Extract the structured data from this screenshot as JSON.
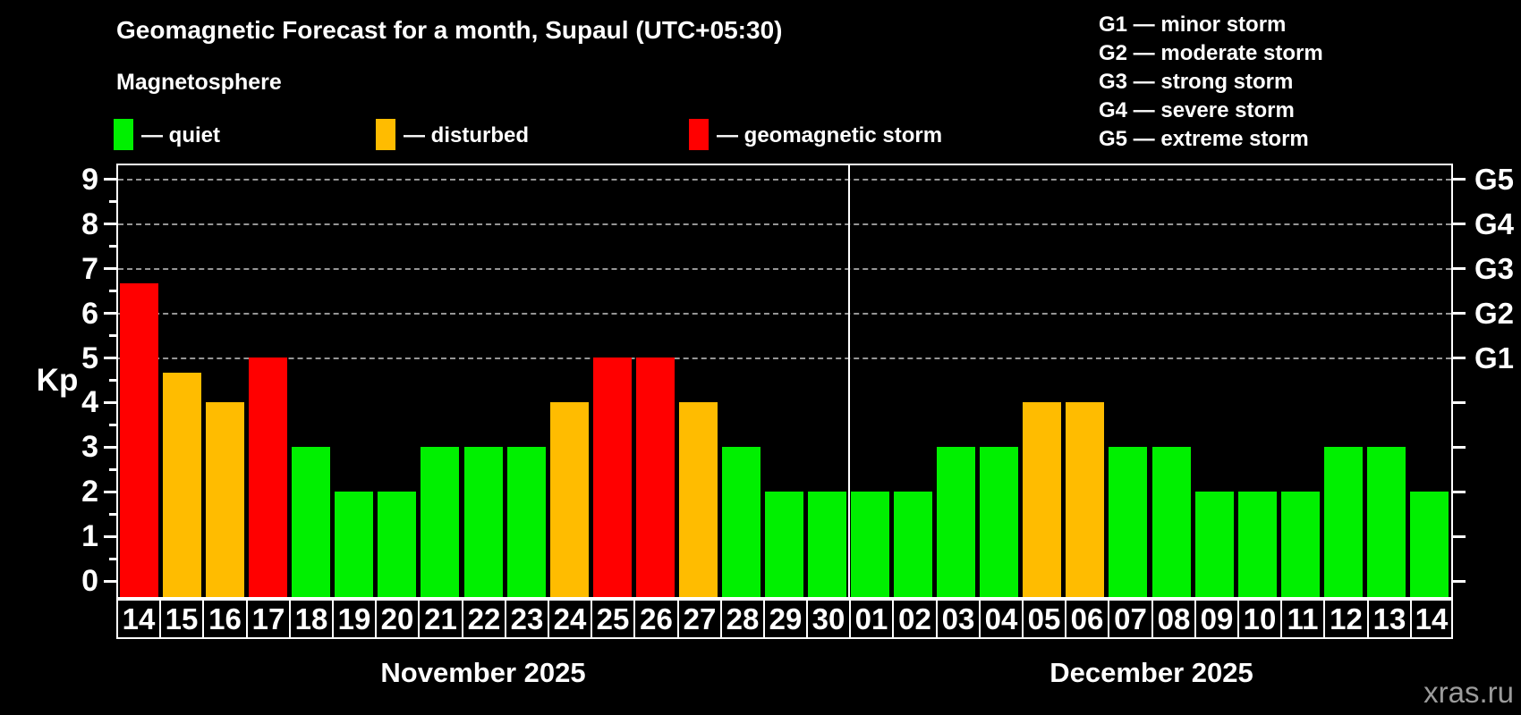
{
  "title": "Geomagnetic Forecast for a month, Supaul (UTC+05:30)",
  "subtitle": "Magnetosphere",
  "watermark": "xras.ru",
  "colors": {
    "quiet": "#00f000",
    "disturbed": "#ffbc00",
    "storm": "#ff0000",
    "grid": "#969696",
    "axis": "#ffffff",
    "background": "#000000",
    "watermark": "#9b9b9b"
  },
  "legend": {
    "items": [
      {
        "status": "quiet",
        "label": "— quiet"
      },
      {
        "status": "disturbed",
        "label": "— disturbed"
      },
      {
        "status": "storm",
        "label": "— geomagnetic storm"
      }
    ]
  },
  "storm_scale": [
    {
      "code": "G1",
      "label": "G1 — minor storm"
    },
    {
      "code": "G2",
      "label": "G2 — moderate storm"
    },
    {
      "code": "G3",
      "label": "G3 — strong storm"
    },
    {
      "code": "G4",
      "label": "G4 — severe storm"
    },
    {
      "code": "G5",
      "label": "G5 — extreme storm"
    }
  ],
  "axis": {
    "kp_label": "Kp",
    "left_ticks": [
      0,
      1,
      2,
      3,
      4,
      5,
      6,
      7,
      8,
      9
    ],
    "right_labels": [
      {
        "text": "G1",
        "kp": 5
      },
      {
        "text": "G2",
        "kp": 6
      },
      {
        "text": "G3",
        "kp": 7
      },
      {
        "text": "G4",
        "kp": 8
      },
      {
        "text": "G5",
        "kp": 9
      }
    ]
  },
  "chart_data": {
    "type": "bar",
    "title": "Geomagnetic Forecast for a month, Supaul (UTC+05:30)",
    "xlabel": "",
    "ylabel": "Kp",
    "ylim": [
      0,
      9
    ],
    "grid": "dashed horizontal at Kp 5-9",
    "legend_position": "top-left",
    "gridlines_kp": [
      5,
      6,
      7,
      8,
      9
    ],
    "months": [
      {
        "label": "November 2025",
        "points": [
          {
            "day": "14",
            "kp": 6.67,
            "status": "storm"
          },
          {
            "day": "15",
            "kp": 4.67,
            "status": "disturbed"
          },
          {
            "day": "16",
            "kp": 4,
            "status": "disturbed"
          },
          {
            "day": "17",
            "kp": 5,
            "status": "storm"
          },
          {
            "day": "18",
            "kp": 3,
            "status": "quiet"
          },
          {
            "day": "19",
            "kp": 2,
            "status": "quiet"
          },
          {
            "day": "20",
            "kp": 2,
            "status": "quiet"
          },
          {
            "day": "21",
            "kp": 3,
            "status": "quiet"
          },
          {
            "day": "22",
            "kp": 3,
            "status": "quiet"
          },
          {
            "day": "23",
            "kp": 3,
            "status": "quiet"
          },
          {
            "day": "24",
            "kp": 4,
            "status": "disturbed"
          },
          {
            "day": "25",
            "kp": 5,
            "status": "storm"
          },
          {
            "day": "26",
            "kp": 5,
            "status": "storm"
          },
          {
            "day": "27",
            "kp": 4,
            "status": "disturbed"
          },
          {
            "day": "28",
            "kp": 3,
            "status": "quiet"
          },
          {
            "day": "29",
            "kp": 2,
            "status": "quiet"
          },
          {
            "day": "30",
            "kp": 2,
            "status": "quiet"
          }
        ]
      },
      {
        "label": "December 2025",
        "points": [
          {
            "day": "01",
            "kp": 2,
            "status": "quiet"
          },
          {
            "day": "02",
            "kp": 2,
            "status": "quiet"
          },
          {
            "day": "03",
            "kp": 3,
            "status": "quiet"
          },
          {
            "day": "04",
            "kp": 3,
            "status": "quiet"
          },
          {
            "day": "05",
            "kp": 4,
            "status": "disturbed"
          },
          {
            "day": "06",
            "kp": 4,
            "status": "disturbed"
          },
          {
            "day": "07",
            "kp": 3,
            "status": "quiet"
          },
          {
            "day": "08",
            "kp": 3,
            "status": "quiet"
          },
          {
            "day": "09",
            "kp": 2,
            "status": "quiet"
          },
          {
            "day": "10",
            "kp": 2,
            "status": "quiet"
          },
          {
            "day": "11",
            "kp": 2,
            "status": "quiet"
          },
          {
            "day": "12",
            "kp": 3,
            "status": "quiet"
          },
          {
            "day": "13",
            "kp": 3,
            "status": "quiet"
          },
          {
            "day": "14",
            "kp": 2,
            "status": "quiet"
          }
        ]
      }
    ]
  }
}
